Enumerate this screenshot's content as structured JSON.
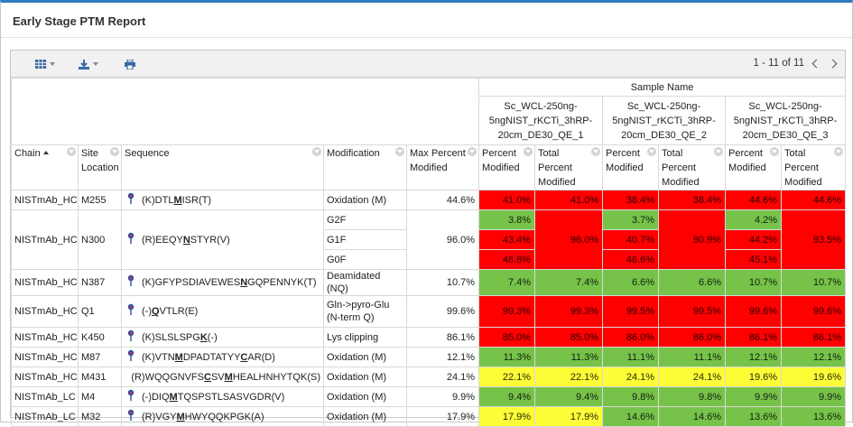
{
  "title": "Early Stage PTM Report",
  "toolbar": {
    "paging_text": "1 - 11 of 11"
  },
  "colors": {
    "red": "#fe0000",
    "green": "#77c34a",
    "yellow": "#fdfd38",
    "accent": "#2f7bbf"
  },
  "headers": {
    "sample_name": "Sample Name",
    "chain": "Chain",
    "site_location": "Site Location",
    "sequence": "Sequence",
    "modification": "Modification",
    "max_percent_modified": "Max Percent Modified",
    "percent_modified": "Percent Modified",
    "total_percent_modified": "Total Percent Modified",
    "samples": [
      "Sc_WCL-250ng-5ngNIST_rKCTi_3hRP-20cm_DE30_QE_1",
      "Sc_WCL-250ng-5ngNIST_rKCTi_3hRP-20cm_DE30_QE_2",
      "Sc_WCL-250ng-5ngNIST_rKCTi_3hRP-20cm_DE30_QE_3"
    ]
  },
  "rows": [
    {
      "chain": "NISTmAb_HC",
      "site": "M255",
      "seq_pre": "(K)DTL",
      "seq_mod": "M",
      "seq_post": "ISR(T)",
      "mod": "Oxidation (M)",
      "max": "44.6%",
      "p": [
        [
          "41.0%",
          "red"
        ],
        [
          "38.4%",
          "red"
        ],
        [
          "44.6%",
          "red"
        ]
      ],
      "t": [
        [
          "41.0%",
          "red"
        ],
        [
          "38.4%",
          "red"
        ],
        [
          "44.6%",
          "red"
        ]
      ]
    },
    {
      "chain": "NISTmAb_HC",
      "site": "N300",
      "seq_pre": "(R)EEQY",
      "seq_mod": "N",
      "seq_post": "STYR(V)",
      "mod_sub": [
        "G2F",
        "G1F",
        "G0F"
      ],
      "max": "96.0%",
      "p_sub": [
        [
          [
            "3.8%",
            "green"
          ],
          [
            "3.7%",
            "green"
          ],
          [
            "4.2%",
            "green"
          ]
        ],
        [
          [
            "43.4%",
            "red"
          ],
          [
            "40.7%",
            "red"
          ],
          [
            "44.2%",
            "red"
          ]
        ],
        [
          [
            "48.8%",
            "red"
          ],
          [
            "46.6%",
            "red"
          ],
          [
            "45.1%",
            "red"
          ]
        ]
      ],
      "t": [
        [
          "96.0%",
          "red"
        ],
        [
          "90.9%",
          "red"
        ],
        [
          "93.5%",
          "red"
        ]
      ]
    },
    {
      "chain": "NISTmAb_HC",
      "site": "N387",
      "seq_pre": "(K)GFYPSDIAVEWES",
      "seq_mod": "N",
      "seq_post": "GQPENNYK(T)",
      "mod": "Deamidated (NQ)",
      "max": "10.7%",
      "p": [
        [
          "7.4%",
          "green"
        ],
        [
          "6.6%",
          "green"
        ],
        [
          "10.7%",
          "green"
        ]
      ],
      "t": [
        [
          "7.4%",
          "green"
        ],
        [
          "6.6%",
          "green"
        ],
        [
          "10.7%",
          "green"
        ]
      ]
    },
    {
      "chain": "NISTmAb_HC",
      "site": "Q1",
      "seq_pre": "(-)",
      "seq_mod": "Q",
      "seq_post": "VTLR(E)",
      "mod": "Gln->pyro-Glu (N-term Q)",
      "max": "99.6%",
      "p": [
        [
          "99.3%",
          "red"
        ],
        [
          "99.5%",
          "red"
        ],
        [
          "99.6%",
          "red"
        ]
      ],
      "t": [
        [
          "99.3%",
          "red"
        ],
        [
          "99.5%",
          "red"
        ],
        [
          "99.6%",
          "red"
        ]
      ]
    },
    {
      "chain": "NISTmAb_HC",
      "site": "K450",
      "seq_pre": "(K)SLSLSPG",
      "seq_mod": "K",
      "seq_post": "(-)",
      "mod": "Lys clipping",
      "max": "86.1%",
      "p": [
        [
          "85.0%",
          "red"
        ],
        [
          "86.0%",
          "red"
        ],
        [
          "86.1%",
          "red"
        ]
      ],
      "t": [
        [
          "85.0%",
          "red"
        ],
        [
          "86.0%",
          "red"
        ],
        [
          "86.1%",
          "red"
        ]
      ]
    },
    {
      "chain": "NISTmAb_HC",
      "site": "M87",
      "seq_pre": "(K)VTN",
      "seq_mod": "M",
      "seq_post": "DPADTATYY",
      "seq_mod2": "C",
      "seq_post2": "AR(D)",
      "mod": "Oxidation (M)",
      "max": "12.1%",
      "p": [
        [
          "11.3%",
          "green"
        ],
        [
          "11.1%",
          "green"
        ],
        [
          "12.1%",
          "green"
        ]
      ],
      "t": [
        [
          "11.3%",
          "green"
        ],
        [
          "11.1%",
          "green"
        ],
        [
          "12.1%",
          "green"
        ]
      ]
    },
    {
      "chain": "NISTmAb_HC",
      "site": "M431",
      "seq_pre": "(R)WQQGNVFS",
      "seq_mod": "C",
      "seq_post": "SV",
      "seq_mod2": "M",
      "seq_post2": "HEALHNHYTQK(S)",
      "mod": "Oxidation (M)",
      "max": "24.1%",
      "p": [
        [
          "22.1%",
          "yellow"
        ],
        [
          "24.1%",
          "yellow"
        ],
        [
          "19.6%",
          "yellow"
        ]
      ],
      "t": [
        [
          "22.1%",
          "yellow"
        ],
        [
          "24.1%",
          "yellow"
        ],
        [
          "19.6%",
          "yellow"
        ]
      ]
    },
    {
      "chain": "NISTmAb_LC",
      "site": "M4",
      "seq_pre": "(-)DIQ",
      "seq_mod": "M",
      "seq_post": "TQSPSTLSASVGDR(V)",
      "mod": "Oxidation (M)",
      "max": "9.9%",
      "p": [
        [
          "9.4%",
          "green"
        ],
        [
          "9.8%",
          "green"
        ],
        [
          "9.9%",
          "green"
        ]
      ],
      "t": [
        [
          "9.4%",
          "green"
        ],
        [
          "9.8%",
          "green"
        ],
        [
          "9.9%",
          "green"
        ]
      ]
    },
    {
      "chain": "NISTmAb_LC",
      "site": "M32",
      "seq_pre": "(R)VGY",
      "seq_mod": "M",
      "seq_post": "HWYQQKPGK(A)",
      "mod": "Oxidation (M)",
      "max": "17.9%",
      "p": [
        [
          "17.9%",
          "yellow"
        ],
        [
          "14.6%",
          "green"
        ],
        [
          "13.6%",
          "green"
        ]
      ],
      "t": [
        [
          "17.9%",
          "yellow"
        ],
        [
          "14.6%",
          "green"
        ],
        [
          "13.6%",
          "green"
        ]
      ]
    }
  ]
}
